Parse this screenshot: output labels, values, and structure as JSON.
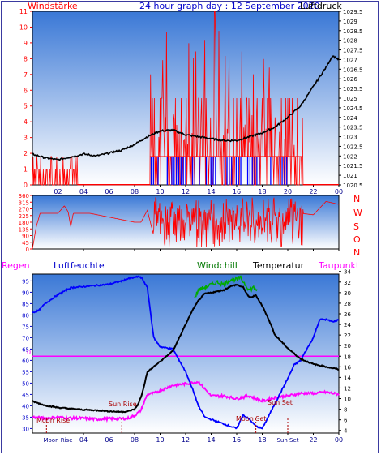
{
  "header": {
    "left_label": "Windstärke",
    "title": "24 hour graph day : 12 September 2020",
    "right_label": "Luftdruck"
  },
  "wind_dir": {
    "compass_labels": [
      "N",
      "W",
      "S",
      "O",
      "N"
    ]
  },
  "bottom": {
    "label_regen": "Regen",
    "label_luftfeuchte": "Luftfeuchte",
    "label_windchill": "Windchill",
    "label_temperatur": "Temperatur",
    "label_taupunkt": "Taupunkt",
    "events": {
      "moon_rise": "Moon Rise",
      "sun_rise": "Sun Rise",
      "sun_set": "Sun Set",
      "moon_set": "Moon Set",
      "moon_rise_axis": "Moon Rise",
      "sun_set_axis": "Sun Set"
    },
    "zero_label": "0"
  },
  "colors": {
    "wind": "#ff0000",
    "gust": "#0000ff",
    "pressure": "#000000",
    "temperature": "#000000",
    "humidity": "#0000ff",
    "dewpoint": "#ff00ff",
    "windchill": "#00aa00",
    "rain": "#ff00ff",
    "axis_left": "#ff0000",
    "axis_right": "#000000",
    "hours": "#00008b",
    "grad_top": "#3f7fd8",
    "grad_bottom": "#ffffff"
  },
  "chart_data": [
    {
      "type": "line",
      "x_ticks": [
        "02",
        "04",
        "06",
        "08",
        "10",
        "12",
        "14",
        "16",
        "18",
        "20",
        "22",
        "00"
      ],
      "xlim_hours": [
        0,
        24
      ],
      "left_axis": {
        "ticks": [
          0,
          1,
          2,
          3,
          4,
          5,
          6,
          7,
          8,
          9,
          10,
          11
        ],
        "ylim": [
          0,
          11
        ]
      },
      "right_axis": {
        "ticks": [
          "1020.5",
          "1021",
          "1021.5",
          "1022",
          "1022.5",
          "1023",
          "1023.5",
          "1024",
          "1024.5",
          "1025",
          "1025.5",
          "1026",
          "1026.5",
          "1027",
          "1027.5",
          "1028",
          "1028.5",
          "1029",
          "1029.5"
        ],
        "ylim": [
          1020.5,
          1029.5
        ]
      },
      "series": [
        {
          "name": "Luftdruck",
          "axis": "right",
          "x": [
            0,
            1,
            2,
            3,
            4,
            5,
            6,
            7,
            8,
            9,
            10,
            11,
            12,
            13,
            14,
            15,
            16,
            17,
            18,
            19,
            20,
            21,
            22,
            23,
            23.5,
            24
          ],
          "values": [
            1022.1,
            1021.9,
            1021.8,
            1021.95,
            1022.1,
            1022.0,
            1022.15,
            1022.3,
            1022.6,
            1023.0,
            1023.3,
            1023.35,
            1023.1,
            1023.0,
            1022.9,
            1022.8,
            1022.8,
            1023.0,
            1023.2,
            1023.5,
            1024.0,
            1024.6,
            1025.6,
            1026.6,
            1027.2,
            1027.0
          ]
        }
      ],
      "wind_activity_hours": [
        0,
        3.5,
        9.2,
        21.2
      ],
      "wind_max_value": 11,
      "gust_activity_hours": [
        9.3,
        20.5
      ]
    },
    {
      "type": "line",
      "y_ticks": [
        0,
        45,
        90,
        135,
        180,
        225,
        270,
        315,
        360
      ],
      "ylim": [
        0,
        360
      ],
      "series": [
        {
          "name": "Windrichtung",
          "x": [
            0,
            0.3,
            0.6,
            2,
            2.5,
            2.8,
            3,
            3.2,
            4.5,
            8,
            8.5,
            9,
            9.5,
            10,
            10.5,
            11,
            12,
            13,
            14,
            15,
            16,
            17,
            18,
            19,
            20,
            21,
            22,
            23,
            24
          ],
          "values": [
            0,
            150,
            240,
            240,
            290,
            250,
            150,
            240,
            240,
            180,
            180,
            260,
            90,
            300,
            200,
            260,
            240,
            280,
            240,
            280,
            240,
            260,
            230,
            280,
            250,
            240,
            230,
            320,
            300
          ]
        }
      ]
    },
    {
      "type": "line",
      "x_ticks": [
        "Moon Rise",
        "04",
        "06",
        "08",
        "10",
        "12",
        "14",
        "16",
        "18",
        "Sun Set",
        "22",
        "00"
      ],
      "left_axis": {
        "ticks": [
          30,
          35,
          40,
          45,
          50,
          55,
          60,
          65,
          70,
          75,
          80,
          85,
          90,
          95
        ],
        "ylim": [
          28,
          98
        ]
      },
      "right_axis": {
        "ticks": [
          4,
          6,
          8,
          10,
          12,
          14,
          16,
          18,
          20,
          22,
          24,
          26,
          28,
          30,
          32,
          34
        ],
        "ylim": [
          3.5,
          33.5
        ]
      },
      "series": [
        {
          "name": "Temperatur",
          "axis": "right",
          "x": [
            0,
            1,
            2,
            3,
            4,
            5,
            6,
            7,
            7.5,
            8,
            8.3,
            8.6,
            9,
            9.5,
            10,
            11,
            12,
            12.5,
            13,
            13.5,
            14,
            15,
            15.5,
            16,
            16.5,
            17,
            17.5,
            18,
            18.5,
            19,
            20,
            21,
            22,
            23,
            24
          ],
          "values": [
            9.5,
            8.7,
            8.3,
            8.1,
            7.9,
            7.8,
            7.6,
            7.5,
            7.6,
            8,
            9,
            11,
            15,
            16,
            17,
            19,
            24,
            26.5,
            28.5,
            29.8,
            30,
            30.5,
            31.2,
            31.5,
            31,
            29,
            29.5,
            27.5,
            25,
            22,
            19.5,
            17.5,
            16.5,
            16,
            15.5
          ]
        },
        {
          "name": "Luftfeuchte",
          "axis": "left",
          "x": [
            0,
            0.5,
            1,
            2,
            3,
            4,
            5,
            6,
            7,
            7.5,
            8,
            8.3,
            8.6,
            9,
            9.5,
            10,
            11,
            11.5,
            12,
            12.5,
            13,
            13.5,
            14,
            14.5,
            15,
            15.5,
            16,
            16.5,
            17,
            17.5,
            18,
            19,
            20,
            20.5,
            21,
            22,
            22.5,
            23,
            23.5,
            24
          ],
          "values": [
            81,
            82,
            85,
            89,
            92,
            92.5,
            93,
            93.5,
            95,
            96,
            96.5,
            97,
            96,
            92,
            70,
            66,
            65,
            60,
            55,
            48,
            40,
            35,
            34,
            33,
            32,
            31,
            30,
            36,
            34,
            31,
            30,
            41,
            52,
            58,
            60,
            70,
            78,
            78,
            77,
            78
          ]
        },
        {
          "name": "Taupunkt",
          "axis": "right",
          "x": [
            0,
            1,
            2,
            3,
            4,
            5,
            6,
            7,
            7.5,
            8,
            8.5,
            9,
            9.5,
            10,
            11,
            12,
            13,
            14,
            15,
            16,
            17,
            18,
            19,
            20,
            21,
            22,
            23,
            24
          ],
          "values": [
            6.5,
            6.3,
            6.5,
            6.3,
            6.3,
            6.1,
            6.2,
            6.2,
            6.3,
            6.8,
            7.8,
            10.8,
            11,
            11.5,
            12.5,
            12.8,
            13.2,
            10.5,
            10.5,
            10,
            10.5,
            9.5,
            10.2,
            10.5,
            11,
            11,
            11.2,
            10.8
          ]
        },
        {
          "name": "Windchill",
          "axis": "right",
          "x": [
            12.7,
            13,
            13.5,
            14,
            14.5,
            15,
            15.5,
            16,
            16.3,
            17,
            17.3,
            17.6
          ],
          "values": [
            29,
            30.5,
            31,
            31.5,
            32,
            31.5,
            32.5,
            32.5,
            32.8,
            30.5,
            31,
            30.5
          ]
        },
        {
          "name": "Regen",
          "axis": "right",
          "x": [
            0,
            24
          ],
          "values": [
            18,
            18
          ]
        }
      ],
      "events": [
        {
          "label": "Moon Rise",
          "hour": 1.1
        },
        {
          "label": "Sun Rise",
          "hour": 7.0
        },
        {
          "label": "Sun Set",
          "hour": 20.0
        },
        {
          "label": "Moon Set",
          "hour": 17.5
        }
      ]
    }
  ]
}
